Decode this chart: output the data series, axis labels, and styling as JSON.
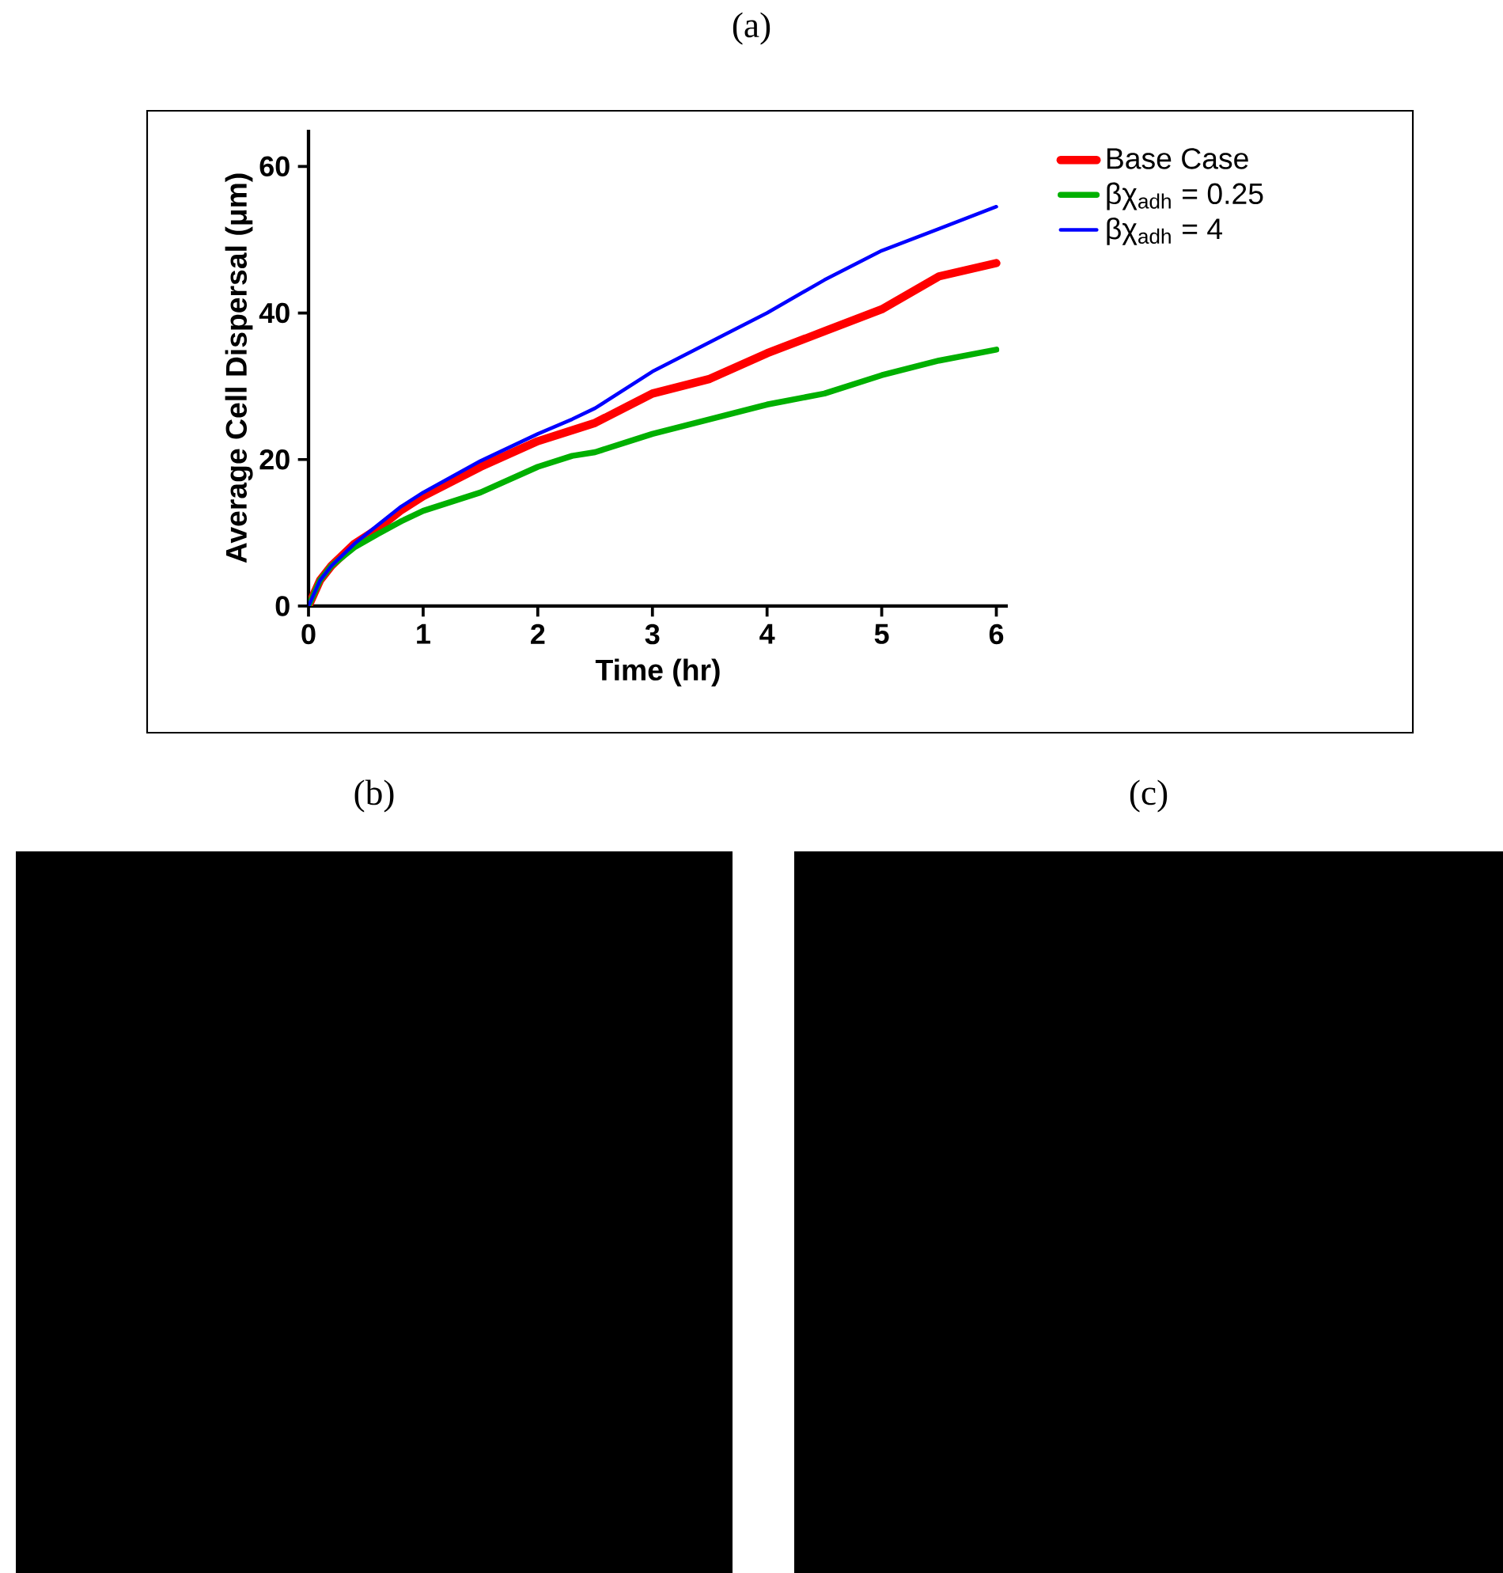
{
  "chart_data": [
    {
      "type": "line",
      "title": "(a)",
      "xlabel": "Time (hr)",
      "ylabel": "Average Cell Dispersal (μm)",
      "x": [
        0,
        0.1,
        0.2,
        0.4,
        0.6,
        0.8,
        1,
        1.5,
        2,
        2.3,
        2.5,
        3,
        3.5,
        4,
        4.5,
        5,
        5.5,
        6
      ],
      "series": [
        {
          "name": "Base Case",
          "color": "#ff0000",
          "values": [
            0,
            3.5,
            5.5,
            8.5,
            10.5,
            13,
            15,
            19,
            22.5,
            24,
            25,
            29,
            31,
            34.5,
            37.5,
            40.5,
            45,
            46.8
          ]
        },
        {
          "name": "βχ$_{adh}$ = 0.25",
          "color": "#00b000",
          "values": [
            0,
            3.5,
            5.5,
            8,
            9.8,
            11.5,
            13,
            15.5,
            19,
            20.5,
            21,
            23.5,
            25.5,
            27.5,
            29,
            31.5,
            33.5,
            35
          ]
        },
        {
          "name": "βχ$_{adh}$ = 4",
          "color": "#0000ff",
          "values": [
            0,
            3.5,
            5.5,
            8.5,
            11,
            13.5,
            15.5,
            19.8,
            23.5,
            25.5,
            27,
            32,
            36,
            40,
            44.5,
            48.5,
            51.5,
            54.5
          ]
        }
      ],
      "xlim": [
        0,
        6.1
      ],
      "xticks": [
        0,
        1,
        2,
        3,
        4,
        5,
        6
      ],
      "ylim": [
        0,
        65
      ],
      "yticks": [
        0,
        20,
        40,
        60
      ],
      "legend": "right",
      "grid": false,
      "marker": "none",
      "line_style": "solid"
    },
    {
      "type": "other",
      "title": "(b)"
    },
    {
      "type": "other",
      "title": "(c)"
    }
  ]
}
